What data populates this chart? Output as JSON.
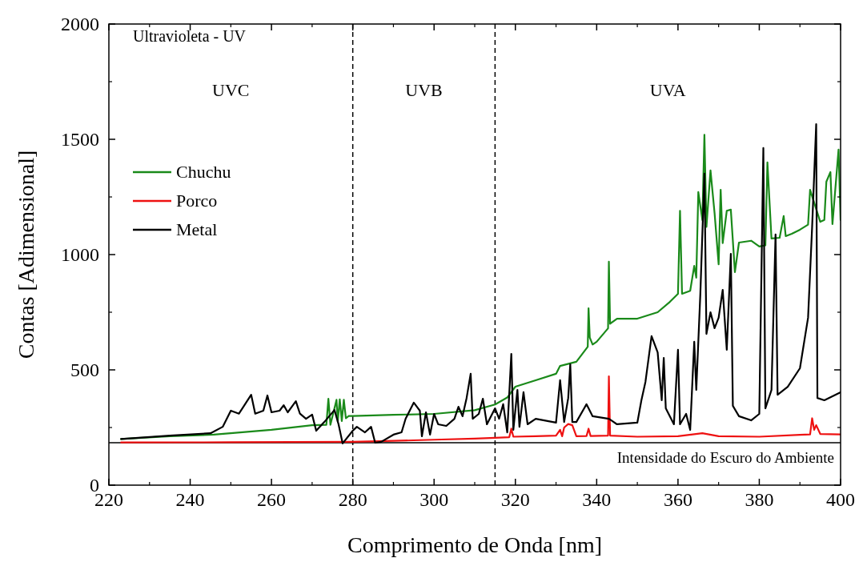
{
  "chart_data": {
    "type": "line",
    "xlabel": "Comprimento de Onda [nm]",
    "ylabel": "Contas [Adimensional]",
    "xlim": [
      220,
      400
    ],
    "xticks": [
      220,
      240,
      260,
      280,
      300,
      320,
      340,
      360,
      380,
      400
    ],
    "ylim": [
      0,
      2000
    ],
    "yticks": [
      0,
      500,
      1000,
      1500,
      2000
    ],
    "grid": false,
    "legend": "top left",
    "line_style": "solid",
    "marker": "none",
    "series": [
      {
        "name": "Chuchu",
        "color": "#1a8a1a",
        "x": [
          223,
          235,
          245.8,
          260,
          270,
          273.5,
          274,
          274.5,
          276,
          276.3,
          276.8,
          277.3,
          277.8,
          278.3,
          279,
          280,
          290,
          300,
          310,
          315,
          318,
          320,
          325,
          330,
          331,
          335,
          337.8,
          338,
          338.3,
          339,
          340,
          342.8,
          343,
          343.3,
          345,
          350,
          355,
          358,
          360,
          360.5,
          361,
          363,
          364,
          364.5,
          365,
          366,
          366.5,
          367,
          368,
          369,
          370,
          370.5,
          371,
          372,
          373,
          374,
          375,
          378,
          380,
          381.5,
          382,
          383,
          385,
          386,
          386.5,
          388,
          390,
          392,
          392.5,
          395,
          396,
          396.5,
          397.5,
          398,
          399.5,
          400
        ],
        "values": [
          200,
          212,
          219,
          240,
          260,
          262,
          375,
          262,
          370,
          275,
          372,
          278,
          370,
          290,
          300,
          300,
          305,
          309,
          325,
          350,
          380,
          427,
          455,
          483,
          517,
          535,
          600,
          767,
          640,
          610,
          622,
          680,
          969,
          700,
          722,
          722,
          750,
          795,
          830,
          1190,
          830,
          843,
          951,
          900,
          1271,
          1150,
          1520,
          1120,
          1365,
          1180,
          958,
          1281,
          1050,
          1190,
          1195,
          924,
          1052,
          1060,
          1035,
          1040,
          1400,
          1070,
          1073,
          1167,
          1080,
          1090,
          1108,
          1130,
          1281,
          1142,
          1150,
          1316,
          1358,
          1132,
          1455,
          1150
        ]
      },
      {
        "name": "Porco",
        "color": "#ee1111",
        "x": [
          223,
          250,
          280,
          290,
          300,
          310,
          315,
          318.5,
          319,
          319.5,
          325,
          330,
          331,
          331.5,
          332,
          333,
          334,
          335,
          337.5,
          338,
          338.5,
          342.8,
          343,
          343.3,
          350,
          360,
          366,
          370,
          380,
          390,
          392.5,
          393,
          393.5,
          394,
          395,
          400
        ],
        "values": [
          185,
          186,
          188,
          192,
          197,
          202,
          205,
          208,
          245,
          210,
          212,
          215,
          240,
          212,
          250,
          265,
          260,
          212,
          213,
          245,
          213,
          215,
          472,
          215,
          210,
          212,
          225,
          212,
          210,
          218,
          220,
          290,
          240,
          260,
          222,
          220
        ]
      },
      {
        "name": "Metal",
        "color": "#000000",
        "x": [
          223,
          235,
          245,
          248,
          250,
          252,
          255,
          256,
          258,
          259,
          260,
          262,
          263,
          264,
          266,
          267,
          268.5,
          270,
          271,
          273,
          275.5,
          276.5,
          277.5,
          280,
          281,
          283,
          284.5,
          285.5,
          287,
          290,
          292,
          293,
          295,
          296.5,
          297,
          298,
          299,
          300,
          301,
          303,
          305,
          306,
          307,
          308,
          309,
          309.5,
          311,
          312,
          313,
          315,
          316,
          317,
          318,
          319,
          319.5,
          320.5,
          321,
          322,
          323,
          325,
          330,
          331,
          332,
          333,
          333.5,
          334,
          335,
          337.5,
          339,
          343,
          345,
          350,
          351,
          352,
          353.5,
          355,
          356,
          356.5,
          357,
          359,
          360,
          360.5,
          362,
          363,
          364,
          364.5,
          365.5,
          366.5,
          367,
          368,
          369,
          370,
          371,
          372,
          373,
          373.5,
          375,
          378,
          380,
          381,
          381.5,
          383,
          384,
          384.5,
          387,
          390,
          392,
          393,
          394,
          394.3,
          396,
          400
        ],
        "values": [
          200,
          215,
          225,
          253,
          323,
          310,
          392,
          310,
          323,
          389,
          316,
          323,
          347,
          316,
          364,
          310,
          288,
          306,
          236,
          274,
          326,
          264,
          181,
          236,
          253,
          229,
          253,
          184,
          188,
          219,
          229,
          288,
          358,
          323,
          212,
          316,
          219,
          309,
          264,
          257,
          288,
          340,
          299,
          378,
          483,
          288,
          309,
          375,
          264,
          333,
          288,
          351,
          229,
          569,
          240,
          413,
          253,
          403,
          264,
          288,
          271,
          455,
          274,
          378,
          524,
          274,
          274,
          351,
          299,
          288,
          264,
          271,
          368,
          448,
          646,
          576,
          368,
          552,
          333,
          264,
          587,
          264,
          309,
          240,
          622,
          413,
          830,
          1351,
          656,
          750,
          681,
          726,
          847,
          587,
          1003,
          344,
          299,
          281,
          309,
          1462,
          333,
          413,
          1087,
          392,
          427,
          507,
          726,
          1120,
          1566,
          378,
          368,
          403
        ]
      }
    ],
    "ref_lines": [
      {
        "axis": "x",
        "value": 280,
        "line_style": "dashed",
        "color": "#000000"
      },
      {
        "axis": "x",
        "value": 315,
        "line_style": "dashed",
        "color": "#000000"
      },
      {
        "axis": "y",
        "value": 184,
        "label": "Intensidade do Escuro do Ambiente",
        "line_style": "solid",
        "color": "#000000"
      }
    ],
    "annotations": [
      "Ultravioleta - UV",
      "UVC",
      "UVB",
      "UVA"
    ]
  }
}
